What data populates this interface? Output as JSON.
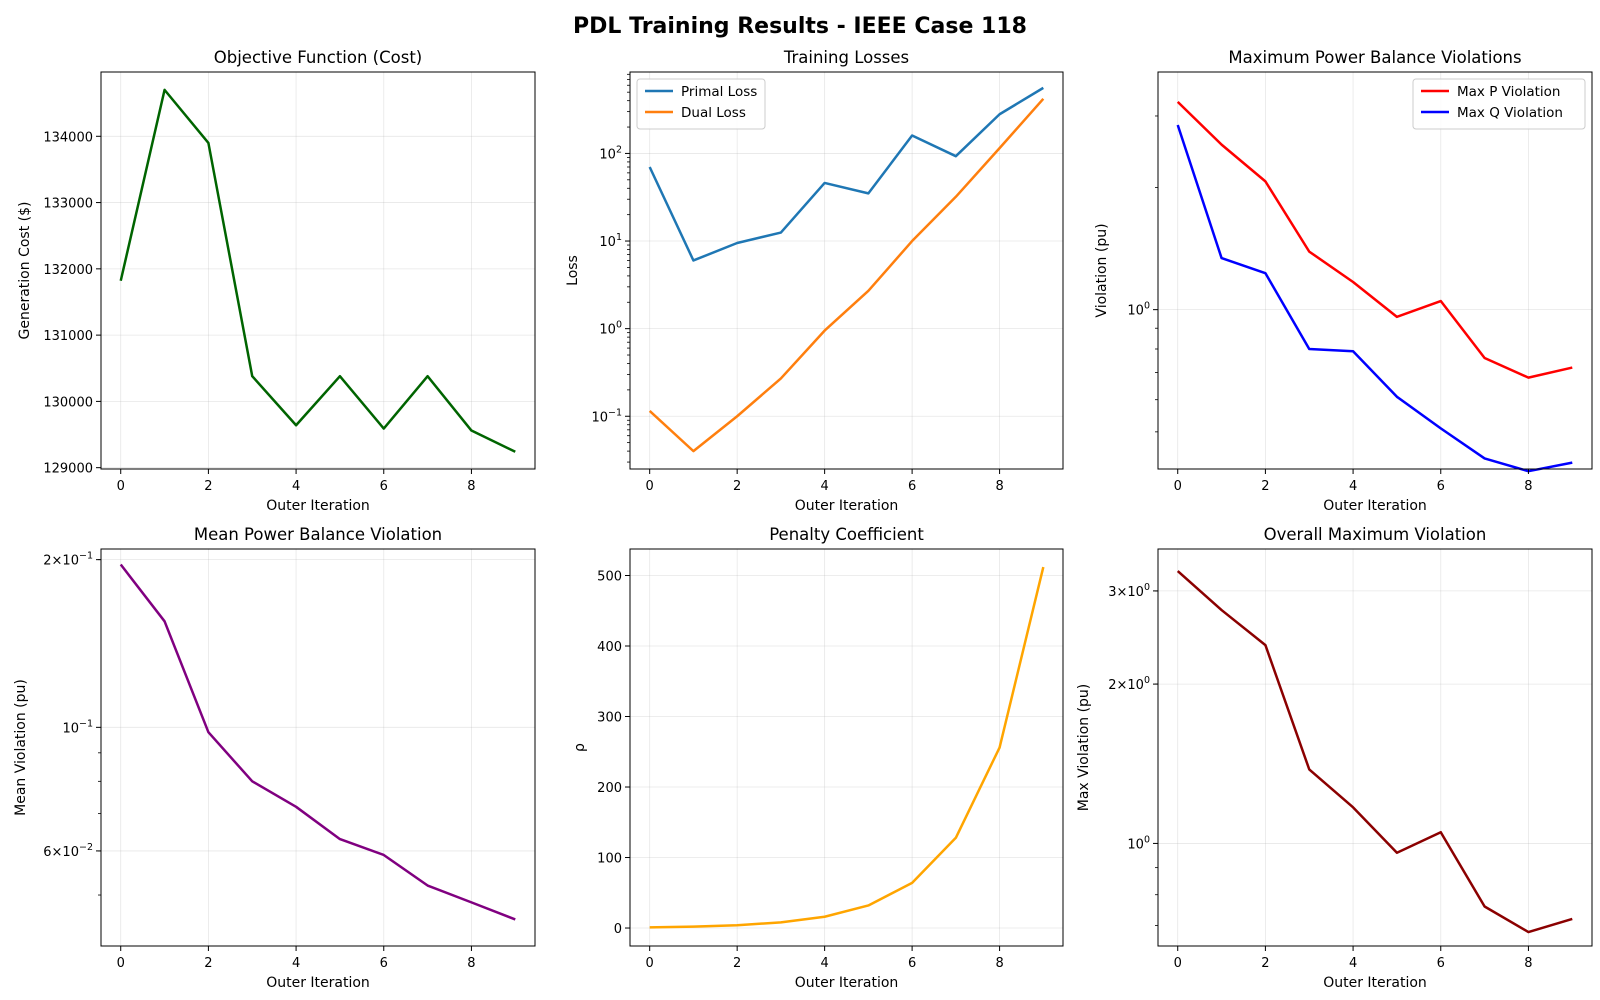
{
  "figure": {
    "title": "PDL Training Results - IEEE Case 118"
  },
  "chart_data": [
    {
      "id": "cost",
      "type": "line",
      "title": "Objective Function (Cost)",
      "xlabel": "Outer Iteration",
      "ylabel": "Generation Cost ($)",
      "yscale": "linear",
      "xlim": [
        -0.45,
        9.45
      ],
      "ylim": [
        128980,
        134970
      ],
      "xticks": [
        0,
        2,
        4,
        6,
        8
      ],
      "yticks": [
        129000,
        130000,
        131000,
        132000,
        133000,
        134000
      ],
      "yticklabels": [
        "129000",
        "130000",
        "131000",
        "132000",
        "133000",
        "134000"
      ],
      "grid": true,
      "legend": null,
      "x": [
        0,
        1,
        2,
        3,
        4,
        5,
        6,
        7,
        8,
        9
      ],
      "series": [
        {
          "color": "#006400",
          "values": [
            131820,
            134700,
            133900,
            130380,
            129640,
            130380,
            129590,
            130380,
            129560,
            129240
          ]
        }
      ]
    },
    {
      "id": "losses",
      "type": "line",
      "title": "Training Losses",
      "xlabel": "Outer Iteration",
      "ylabel": "Loss",
      "yscale": "log",
      "xlim": [
        -0.45,
        9.45
      ],
      "ylim": [
        0.025,
        850
      ],
      "xticks": [
        0,
        2,
        4,
        6,
        8
      ],
      "yticks": [
        0.1,
        1,
        10,
        100
      ],
      "yticklabels": [
        [
          "10",
          "−1"
        ],
        [
          "10",
          "0"
        ],
        [
          "10",
          "1"
        ],
        [
          "10",
          "2"
        ]
      ],
      "minor_ticks": true,
      "grid": true,
      "legend": "top-left",
      "x": [
        0,
        1,
        2,
        3,
        4,
        5,
        6,
        7,
        8,
        9
      ],
      "series": [
        {
          "name": "Primal Loss",
          "color": "#1f77b4",
          "values": [
            70,
            6,
            9.5,
            12.5,
            46,
            35,
            160,
            93,
            280,
            560
          ]
        },
        {
          "name": "Dual Loss",
          "color": "#ff7f0e",
          "values": [
            0.115,
            0.04,
            0.1,
            0.27,
            0.95,
            2.7,
            10,
            32,
            115,
            420
          ]
        }
      ]
    },
    {
      "id": "maxviol",
      "type": "line",
      "title": "Maximum Power Balance Violations",
      "xlabel": "Outer Iteration",
      "ylabel": "Violation (pu)",
      "yscale": "log",
      "xlim": [
        -0.45,
        9.45
      ],
      "ylim": [
        0.405,
        3.85
      ],
      "xticks": [
        0,
        2,
        4,
        6,
        8
      ],
      "yticks": [
        1
      ],
      "yticklabels": [
        [
          "10",
          "0"
        ]
      ],
      "minor_ticks": true,
      "grid": true,
      "legend": "top-right",
      "x": [
        0,
        1,
        2,
        3,
        4,
        5,
        6,
        7,
        8,
        9
      ],
      "series": [
        {
          "name": "Max P Violation",
          "color": "#ff0000",
          "values": [
            3.25,
            2.55,
            2.07,
            1.39,
            1.17,
            0.96,
            1.05,
            0.76,
            0.68,
            0.72
          ]
        },
        {
          "name": "Max Q Violation",
          "color": "#0000ff",
          "values": [
            2.85,
            1.34,
            1.23,
            0.8,
            0.79,
            0.61,
            0.51,
            0.43,
            0.4,
            0.42
          ]
        }
      ]
    },
    {
      "id": "meanviol",
      "type": "line",
      "title": "Mean Power Balance Violation",
      "xlabel": "Outer Iteration",
      "ylabel": "Mean Violation (pu)",
      "yscale": "log",
      "xlim": [
        -0.45,
        9.45
      ],
      "ylim": [
        0.0405,
        0.209
      ],
      "xticks": [
        0,
        2,
        4,
        6,
        8
      ],
      "yticks": [
        0.06,
        0.1,
        0.2
      ],
      "yticklabels": [
        [
          "6×10",
          "−2"
        ],
        [
          "10",
          "−1"
        ],
        [
          "2×10",
          "−1"
        ]
      ],
      "minor_ticks": true,
      "grid": true,
      "legend": null,
      "x": [
        0,
        1,
        2,
        3,
        4,
        5,
        6,
        7,
        8,
        9
      ],
      "series": [
        {
          "color": "#800080",
          "values": [
            0.196,
            0.155,
            0.098,
            0.08,
            0.072,
            0.063,
            0.059,
            0.052,
            0.0485,
            0.0452
          ]
        }
      ]
    },
    {
      "id": "rho",
      "type": "line",
      "title": "Penalty Coefficient",
      "xlabel": "Outer Iteration",
      "ylabel": "ρ",
      "yscale": "linear",
      "xlim": [
        -0.45,
        9.45
      ],
      "ylim": [
        -25.5,
        537.6
      ],
      "xticks": [
        0,
        2,
        4,
        6,
        8
      ],
      "yticks": [
        0,
        100,
        200,
        300,
        400,
        500
      ],
      "yticklabels": [
        "0",
        "100",
        "200",
        "300",
        "400",
        "500"
      ],
      "grid": true,
      "legend": null,
      "x": [
        0,
        1,
        2,
        3,
        4,
        5,
        6,
        7,
        8,
        9
      ],
      "series": [
        {
          "color": "#ffa500",
          "values": [
            1,
            2,
            4,
            8,
            16,
            32,
            64,
            128,
            256,
            512
          ]
        }
      ]
    },
    {
      "id": "overall",
      "type": "line",
      "title": "Overall Maximum Violation",
      "xlabel": "Outer Iteration",
      "ylabel": "Max Violation (pu)",
      "yscale": "log",
      "xlim": [
        -0.45,
        9.45
      ],
      "ylim": [
        0.64,
        3.6
      ],
      "xticks": [
        0,
        2,
        4,
        6,
        8
      ],
      "yticks": [
        1,
        2,
        3
      ],
      "yticklabels": [
        [
          "10",
          "0"
        ],
        [
          "2×10",
          "0"
        ],
        [
          "3×10",
          "0"
        ]
      ],
      "minor_ticks": true,
      "grid": true,
      "legend": null,
      "x": [
        0,
        1,
        2,
        3,
        4,
        5,
        6,
        7,
        8,
        9
      ],
      "series": [
        {
          "color": "#8b0000",
          "values": [
            3.27,
            2.76,
            2.37,
            1.38,
            1.17,
            0.96,
            1.05,
            0.76,
            0.68,
            0.72
          ]
        }
      ]
    }
  ]
}
